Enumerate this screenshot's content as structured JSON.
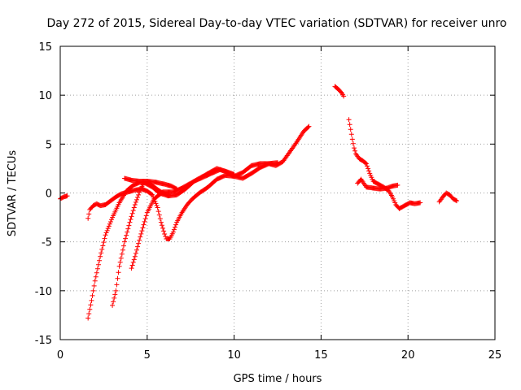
{
  "chart_data": {
    "type": "scatter",
    "title": "Day 272 of 2015, Sidereal Day-to-day VTEC variation (SDTVAR) for receiver unro",
    "xlabel": "GPS time / hours",
    "ylabel": "SDTVAR / TECUs",
    "xlim": [
      0,
      25
    ],
    "ylim": [
      -15,
      15
    ],
    "xticks": [
      "0",
      "5",
      "10",
      "15",
      "20",
      "25"
    ],
    "yticks": [
      "-15",
      "-10",
      "-5",
      "0",
      "5",
      "10",
      "15"
    ],
    "grid": true,
    "marker": "+",
    "color": "#ff0000",
    "series": [
      {
        "values": [
          [
            0.0,
            -0.6
          ],
          [
            0.1,
            -0.5
          ],
          [
            0.2,
            -0.4
          ],
          [
            0.3,
            -0.35
          ],
          [
            0.4,
            -0.3
          ]
        ]
      },
      {
        "values": [
          [
            1.6,
            -2.6
          ],
          [
            1.7,
            -1.7
          ],
          [
            1.9,
            -1.3
          ],
          [
            2.1,
            -1.1
          ],
          [
            2.3,
            -1.3
          ],
          [
            2.6,
            -1.2
          ],
          [
            2.9,
            -0.8
          ],
          [
            3.2,
            -0.4
          ],
          [
            3.5,
            -0.1
          ],
          [
            3.9,
            0.1
          ],
          [
            4.3,
            0.3
          ],
          [
            4.7,
            0.4
          ],
          [
            5.0,
            0.2
          ],
          [
            5.3,
            -0.2
          ],
          [
            5.6,
            -1.5
          ],
          [
            5.8,
            -3.0
          ],
          [
            6.0,
            -4.2
          ],
          [
            6.1,
            -4.7
          ],
          [
            6.3,
            -4.7
          ],
          [
            6.5,
            -4.0
          ],
          [
            6.7,
            -3.0
          ],
          [
            7.0,
            -2.0
          ],
          [
            7.3,
            -1.2
          ],
          [
            7.6,
            -0.6
          ],
          [
            8.0,
            0.0
          ],
          [
            8.5,
            0.6
          ],
          [
            9.0,
            1.4
          ],
          [
            9.5,
            1.8
          ],
          [
            10.0,
            1.7
          ],
          [
            10.5,
            2.1
          ],
          [
            11.0,
            2.8
          ],
          [
            11.5,
            3.0
          ],
          [
            12.0,
            3.0
          ],
          [
            12.4,
            2.8
          ],
          [
            12.8,
            3.2
          ],
          [
            13.2,
            4.2
          ],
          [
            13.6,
            5.2
          ],
          [
            14.0,
            6.3
          ],
          [
            14.3,
            6.8
          ]
        ]
      },
      {
        "values": [
          [
            1.6,
            -12.8
          ],
          [
            1.8,
            -11.0
          ],
          [
            2.0,
            -9.0
          ],
          [
            2.3,
            -6.5
          ],
          [
            2.6,
            -4.3
          ],
          [
            3.0,
            -2.5
          ],
          [
            3.4,
            -1.0
          ],
          [
            3.8,
            0.2
          ],
          [
            4.2,
            0.8
          ],
          [
            4.6,
            1.1
          ],
          [
            4.9,
            1.0
          ],
          [
            5.3,
            0.6
          ],
          [
            5.7,
            0.0
          ],
          [
            6.2,
            -0.3
          ],
          [
            6.7,
            -0.2
          ],
          [
            7.2,
            0.4
          ],
          [
            7.7,
            1.2
          ],
          [
            8.2,
            1.6
          ],
          [
            8.7,
            2.0
          ],
          [
            9.2,
            2.4
          ],
          [
            9.7,
            2.1
          ],
          [
            10.0,
            1.9
          ]
        ]
      },
      {
        "values": [
          [
            3.0,
            -11.5
          ],
          [
            3.2,
            -10.0
          ],
          [
            3.4,
            -7.5
          ],
          [
            3.7,
            -5.0
          ],
          [
            4.0,
            -3.0
          ],
          [
            4.3,
            -1.2
          ],
          [
            4.6,
            0.3
          ],
          [
            4.8,
            1.0
          ],
          [
            5.0,
            1.2
          ],
          [
            5.4,
            0.6
          ],
          [
            5.8,
            0.1
          ],
          [
            6.2,
            -0.2
          ]
        ]
      },
      {
        "values": [
          [
            4.1,
            -7.7
          ],
          [
            4.3,
            -6.5
          ],
          [
            4.6,
            -4.5
          ],
          [
            5.0,
            -2.0
          ],
          [
            5.4,
            -0.6
          ],
          [
            5.9,
            0.1
          ],
          [
            6.5,
            0.1
          ],
          [
            7.0,
            0.5
          ],
          [
            7.5,
            1.0
          ],
          [
            8.0,
            1.5
          ],
          [
            8.5,
            2.0
          ],
          [
            9.0,
            2.5
          ],
          [
            9.5,
            2.2
          ],
          [
            10.0,
            1.7
          ],
          [
            10.5,
            1.5
          ],
          [
            11.0,
            2.0
          ],
          [
            11.5,
            2.6
          ],
          [
            12.0,
            3.0
          ],
          [
            12.5,
            3.1
          ]
        ]
      },
      {
        "values": [
          [
            3.7,
            1.5
          ],
          [
            4.1,
            1.3
          ],
          [
            4.6,
            1.2
          ],
          [
            5.0,
            1.2
          ],
          [
            5.5,
            1.1
          ],
          [
            6.0,
            0.9
          ],
          [
            6.4,
            0.7
          ],
          [
            6.7,
            0.4
          ]
        ]
      },
      {
        "values": [
          [
            15.8,
            10.9
          ],
          [
            16.0,
            10.6
          ],
          [
            16.2,
            10.2
          ],
          [
            16.3,
            9.9
          ]
        ]
      },
      {
        "values": [
          [
            16.6,
            7.5
          ],
          [
            16.7,
            6.5
          ],
          [
            16.8,
            5.5
          ],
          [
            16.9,
            4.6
          ],
          [
            17.0,
            4.0
          ],
          [
            17.2,
            3.5
          ],
          [
            17.4,
            3.3
          ],
          [
            17.6,
            3.0
          ],
          [
            17.8,
            2.0
          ],
          [
            18.0,
            1.2
          ],
          [
            18.3,
            0.9
          ],
          [
            18.6,
            0.6
          ],
          [
            18.9,
            0.2
          ],
          [
            19.1,
            -0.4
          ],
          [
            19.3,
            -1.2
          ],
          [
            19.5,
            -1.6
          ],
          [
            19.8,
            -1.3
          ],
          [
            20.1,
            -1.0
          ],
          [
            20.4,
            -1.1
          ],
          [
            20.7,
            -1.0
          ]
        ]
      },
      {
        "values": [
          [
            17.1,
            1.0
          ],
          [
            17.3,
            1.4
          ],
          [
            17.6,
            0.6
          ],
          [
            18.0,
            0.5
          ],
          [
            18.4,
            0.4
          ],
          [
            18.8,
            0.5
          ],
          [
            19.1,
            0.7
          ],
          [
            19.4,
            0.8
          ]
        ]
      },
      {
        "values": [
          [
            21.8,
            -0.9
          ],
          [
            22.0,
            -0.4
          ],
          [
            22.2,
            0.0
          ],
          [
            22.4,
            -0.2
          ],
          [
            22.6,
            -0.6
          ],
          [
            22.8,
            -0.8
          ]
        ]
      }
    ]
  }
}
